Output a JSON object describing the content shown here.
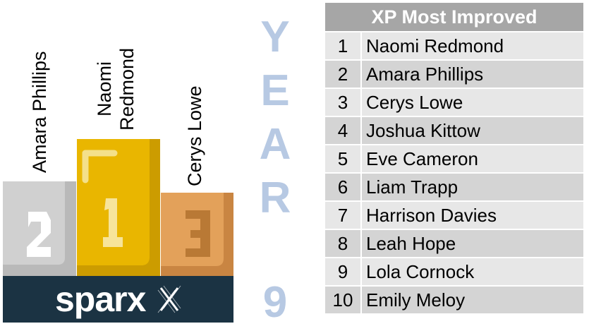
{
  "podium": {
    "first": {
      "name_line1": "Naomi",
      "name_line2": "Redmond",
      "place": "1"
    },
    "second": {
      "name": "Amara Phillips",
      "place": "2"
    },
    "third": {
      "name": "Cerys Lowe",
      "place": "3"
    },
    "logo_text": "sparx"
  },
  "year": {
    "letters": [
      "Y",
      "E",
      "A",
      "R"
    ],
    "number": "9"
  },
  "table": {
    "title": "XP Most Improved",
    "rows": [
      {
        "rank": "1",
        "name": "Naomi Redmond"
      },
      {
        "rank": "2",
        "name": "Amara Phillips"
      },
      {
        "rank": "3",
        "name": "Cerys Lowe"
      },
      {
        "rank": "4",
        "name": "Joshua Kittow"
      },
      {
        "rank": "5",
        "name": "Eve Cameron"
      },
      {
        "rank": "6",
        "name": "Liam Trapp"
      },
      {
        "rank": "7",
        "name": "Harrison Davies"
      },
      {
        "rank": "8",
        "name": "Leah Hope"
      },
      {
        "rank": "9",
        "name": "Lola Cornock"
      },
      {
        "rank": "10",
        "name": "Emily Meloy"
      }
    ]
  },
  "colors": {
    "gold": "#e9b600",
    "gold_dark": "#c99a00",
    "silver": "#d0d0d0",
    "silver_dark": "#b8b8b8",
    "bronze": "#e3a15a",
    "bronze_dark": "#c98542",
    "base": "#1b3343",
    "year": "#b7c9e3",
    "header": "#a6a6a6"
  }
}
